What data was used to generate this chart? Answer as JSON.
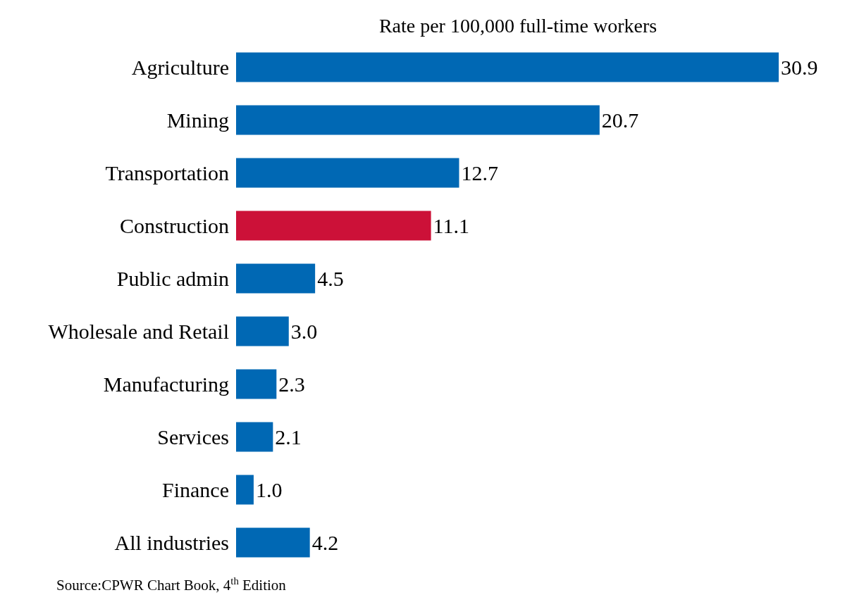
{
  "chart_data": {
    "type": "bar",
    "orientation": "horizontal",
    "title": "Rate per 100,000 full-time workers",
    "categories": [
      "Agriculture",
      "Mining",
      "Transportation",
      "Construction",
      "Public admin",
      "Wholesale and Retail",
      "Manufacturing",
      "Services",
      "Finance",
      "All industries"
    ],
    "values": [
      30.9,
      20.7,
      12.7,
      11.1,
      4.5,
      3.0,
      2.3,
      2.1,
      1.0,
      4.2
    ],
    "colors": [
      "#0068b4",
      "#0068b4",
      "#0068b4",
      "#cc1138",
      "#0068b4",
      "#0068b4",
      "#0068b4",
      "#0068b4",
      "#0068b4",
      "#0068b4"
    ],
    "value_labels": [
      "30.9",
      "20.7",
      "12.7",
      "11.1",
      "4.5",
      "3.0",
      "2.3",
      "2.1",
      "1.0",
      "4.2"
    ],
    "annotations": [
      "Source:CPWR  Chart Book, 4$^{th}$ Edition"
    ]
  }
}
